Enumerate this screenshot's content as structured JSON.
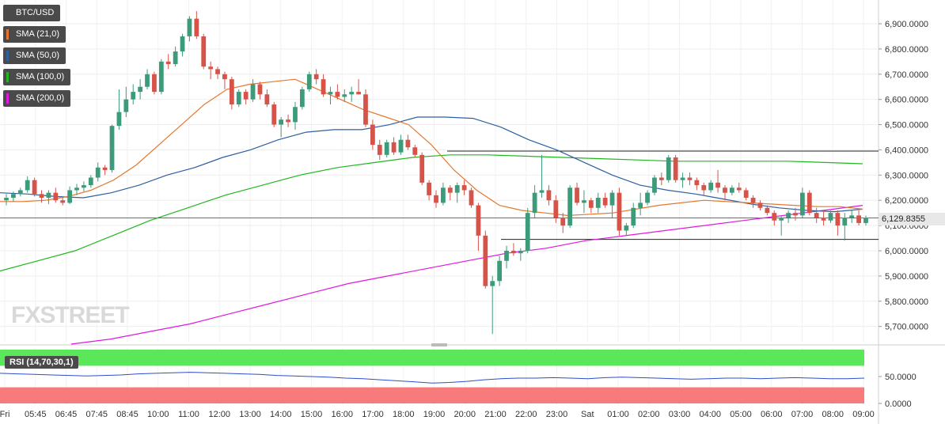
{
  "symbol": "BTC/USD",
  "legend": [
    {
      "label": "BTC/USD",
      "color": "#4a4a4a"
    },
    {
      "label": "SMA (21,0)",
      "color": "#e5772e"
    },
    {
      "label": "SMA (50,0)",
      "color": "#2d5fa3"
    },
    {
      "label": "SMA (100,0)",
      "color": "#1eb81e"
    },
    {
      "label": "SMA (200,0)",
      "color": "#e018e0"
    }
  ],
  "watermark": "FXSTREET",
  "current_price": "6,129.8355",
  "rsi_label": "RSI (14,70,30,1)",
  "rsi_axis": [
    "50.0000",
    "0.0000"
  ],
  "colors": {
    "up": "#3c9c7a",
    "down": "#d6534a",
    "sma21": "#e5772e",
    "sma50": "#2d5fa3",
    "sma100": "#1eb81e",
    "sma200": "#e018e0",
    "rsi": "#2d4fc9",
    "rsi_overbought": "#5ae85a",
    "rsi_oversold": "#f77b7b"
  },
  "chart_data": {
    "type": "candlestick",
    "ylim": [
      5650,
      6950
    ],
    "y_ticks": [
      "6,900.0000",
      "6,800.0000",
      "6,700.0000",
      "6,600.0000",
      "6,500.0000",
      "6,400.0000",
      "6,300.0000",
      "6,200.0000",
      "6,100.0000",
      "6,000.0000",
      "5,900.0000",
      "5,800.0000",
      "5,700.0000"
    ],
    "y_tick_values": [
      6900,
      6800,
      6700,
      6600,
      6500,
      6400,
      6300,
      6200,
      6100,
      6000,
      5900,
      5800,
      5700
    ],
    "x_ticks": [
      "Fri",
      "05:45",
      "06:45",
      "07:45",
      "08:45",
      "10:00",
      "11:00",
      "12:00",
      "13:00",
      "14:00",
      "15:00",
      "16:00",
      "17:00",
      "18:00",
      "19:00",
      "20:00",
      "21:00",
      "22:00",
      "23:00",
      "Sat",
      "01:00",
      "02:00",
      "03:00",
      "04:00",
      "05:00",
      "06:00",
      "07:00",
      "08:00",
      "09:00"
    ],
    "candles": [
      [
        6200,
        6225,
        6180,
        6210
      ],
      [
        6210,
        6235,
        6195,
        6225
      ],
      [
        6225,
        6250,
        6215,
        6240
      ],
      [
        6240,
        6295,
        6230,
        6280
      ],
      [
        6280,
        6290,
        6215,
        6225
      ],
      [
        6225,
        6240,
        6190,
        6210
      ],
      [
        6210,
        6240,
        6185,
        6230
      ],
      [
        6230,
        6250,
        6190,
        6200
      ],
      [
        6200,
        6215,
        6180,
        6190
      ],
      [
        6190,
        6255,
        6185,
        6240
      ],
      [
        6240,
        6265,
        6220,
        6250
      ],
      [
        6250,
        6275,
        6235,
        6260
      ],
      [
        6260,
        6300,
        6250,
        6290
      ],
      [
        6290,
        6350,
        6275,
        6330
      ],
      [
        6330,
        6340,
        6300,
        6320
      ],
      [
        6320,
        6500,
        6310,
        6495
      ],
      [
        6495,
        6640,
        6480,
        6550
      ],
      [
        6550,
        6650,
        6530,
        6600
      ],
      [
        6600,
        6660,
        6580,
        6630
      ],
      [
        6630,
        6680,
        6600,
        6650
      ],
      [
        6650,
        6720,
        6640,
        6700
      ],
      [
        6700,
        6710,
        6620,
        6630
      ],
      [
        6630,
        6760,
        6620,
        6750
      ],
      [
        6750,
        6780,
        6720,
        6740
      ],
      [
        6740,
        6810,
        6730,
        6790
      ],
      [
        6790,
        6860,
        6770,
        6850
      ],
      [
        6850,
        6930,
        6830,
        6920
      ],
      [
        6920,
        6950,
        6840,
        6850
      ],
      [
        6850,
        6860,
        6720,
        6730
      ],
      [
        6730,
        6750,
        6680,
        6720
      ],
      [
        6720,
        6730,
        6680,
        6700
      ],
      [
        6700,
        6710,
        6640,
        6680
      ],
      [
        6680,
        6690,
        6560,
        6580
      ],
      [
        6580,
        6640,
        6570,
        6630
      ],
      [
        6630,
        6640,
        6580,
        6600
      ],
      [
        6600,
        6680,
        6590,
        6660
      ],
      [
        6660,
        6670,
        6600,
        6620
      ],
      [
        6620,
        6640,
        6570,
        6580
      ],
      [
        6580,
        6590,
        6490,
        6500
      ],
      [
        6500,
        6530,
        6450,
        6520
      ],
      [
        6520,
        6540,
        6490,
        6510
      ],
      [
        6510,
        6590,
        6480,
        6570
      ],
      [
        6570,
        6650,
        6560,
        6640
      ],
      [
        6640,
        6710,
        6630,
        6700
      ],
      [
        6700,
        6720,
        6660,
        6680
      ],
      [
        6680,
        6700,
        6610,
        6620
      ],
      [
        6620,
        6650,
        6580,
        6630
      ],
      [
        6630,
        6660,
        6600,
        6610
      ],
      [
        6610,
        6640,
        6590,
        6620
      ],
      [
        6620,
        6650,
        6590,
        6630
      ],
      [
        6630,
        6680,
        6620,
        6620
      ],
      [
        6620,
        6640,
        6490,
        6500
      ],
      [
        6500,
        6520,
        6400,
        6420
      ],
      [
        6420,
        6440,
        6360,
        6380
      ],
      [
        6380,
        6440,
        6370,
        6430
      ],
      [
        6430,
        6450,
        6380,
        6390
      ],
      [
        6390,
        6460,
        6380,
        6440
      ],
      [
        6440,
        6460,
        6400,
        6410
      ],
      [
        6410,
        6420,
        6370,
        6380
      ],
      [
        6380,
        6390,
        6260,
        6270
      ],
      [
        6270,
        6280,
        6200,
        6220
      ],
      [
        6220,
        6240,
        6170,
        6190
      ],
      [
        6190,
        6270,
        6180,
        6250
      ],
      [
        6250,
        6260,
        6200,
        6230
      ],
      [
        6230,
        6270,
        6190,
        6260
      ],
      [
        6260,
        6280,
        6220,
        6240
      ],
      [
        6240,
        6250,
        6170,
        6180
      ],
      [
        6180,
        6190,
        6000,
        6060
      ],
      [
        6060,
        6080,
        5850,
        5860
      ],
      [
        5860,
        5900,
        5670,
        5880
      ],
      [
        5880,
        5980,
        5860,
        5960
      ],
      [
        5960,
        6020,
        5930,
        6000
      ],
      [
        6000,
        6030,
        5980,
        5990
      ],
      [
        5990,
        6010,
        5960,
        6000
      ],
      [
        6000,
        6170,
        5990,
        6150
      ],
      [
        6150,
        6260,
        6130,
        6230
      ],
      [
        6230,
        6380,
        6210,
        6240
      ],
      [
        6240,
        6260,
        6180,
        6200
      ],
      [
        6200,
        6220,
        6110,
        6130
      ],
      [
        6130,
        6150,
        6070,
        6100
      ],
      [
        6100,
        6260,
        6090,
        6250
      ],
      [
        6250,
        6270,
        6180,
        6190
      ],
      [
        6190,
        6240,
        6150,
        6200
      ],
      [
        6200,
        6210,
        6150,
        6170
      ],
      [
        6170,
        6230,
        6150,
        6210
      ],
      [
        6210,
        6230,
        6170,
        6180
      ],
      [
        6180,
        6240,
        6130,
        6230
      ],
      [
        6230,
        6250,
        6060,
        6080
      ],
      [
        6080,
        6110,
        6060,
        6100
      ],
      [
        6100,
        6190,
        6090,
        6170
      ],
      [
        6170,
        6230,
        6140,
        6190
      ],
      [
        6190,
        6240,
        6180,
        6230
      ],
      [
        6230,
        6300,
        6220,
        6290
      ],
      [
        6290,
        6310,
        6260,
        6280
      ],
      [
        6280,
        6380,
        6270,
        6370
      ],
      [
        6370,
        6380,
        6270,
        6280
      ],
      [
        6280,
        6310,
        6250,
        6290
      ],
      [
        6290,
        6310,
        6260,
        6280
      ],
      [
        6280,
        6290,
        6240,
        6260
      ],
      [
        6260,
        6270,
        6220,
        6240
      ],
      [
        6240,
        6280,
        6230,
        6270
      ],
      [
        6270,
        6320,
        6230,
        6250
      ],
      [
        6250,
        6260,
        6200,
        6230
      ],
      [
        6230,
        6260,
        6220,
        6250
      ],
      [
        6250,
        6270,
        6230,
        6240
      ],
      [
        6240,
        6250,
        6200,
        6210
      ],
      [
        6210,
        6220,
        6170,
        6190
      ],
      [
        6190,
        6200,
        6160,
        6170
      ],
      [
        6170,
        6180,
        6140,
        6150
      ],
      [
        6150,
        6160,
        6100,
        6120
      ],
      [
        6120,
        6140,
        6060,
        6130
      ],
      [
        6130,
        6160,
        6110,
        6150
      ],
      [
        6150,
        6170,
        6120,
        6140
      ],
      [
        6140,
        6250,
        6130,
        6230
      ],
      [
        6230,
        6240,
        6140,
        6150
      ],
      [
        6150,
        6170,
        6110,
        6130
      ],
      [
        6130,
        6160,
        6100,
        6120
      ],
      [
        6120,
        6160,
        6110,
        6150
      ],
      [
        6150,
        6160,
        6060,
        6100
      ],
      [
        6100,
        6150,
        6040,
        6130
      ],
      [
        6130,
        6160,
        6110,
        6140
      ],
      [
        6140,
        6160,
        6100,
        6110
      ],
      [
        6110,
        6140,
        6100,
        6130
      ]
    ],
    "sma21": [
      6195,
      6195,
      6200,
      6215,
      6240,
      6280,
      6340,
      6420,
      6500,
      6580,
      6640,
      6660,
      6670,
      6680,
      6640,
      6600,
      6560,
      6530,
      6500,
      6420,
      6320,
      6240,
      6180,
      6160,
      6150,
      6140,
      6145,
      6150,
      6165,
      6180,
      6190,
      6200,
      6195,
      6190,
      6185,
      6180,
      6175,
      6175,
      6165
    ],
    "sma50": [
      6230,
      6225,
      6215,
      6210,
      6230,
      6260,
      6300,
      6330,
      6370,
      6400,
      6440,
      6470,
      6480,
      6480,
      6500,
      6530,
      6530,
      6525,
      6490,
      6440,
      6400,
      6350,
      6300,
      6260,
      6240,
      6225,
      6205,
      6185,
      6170,
      6160,
      6155,
      6165
    ],
    "sma100": [
      5920,
      5960,
      6000,
      6060,
      6120,
      6170,
      6220,
      6260,
      6300,
      6330,
      6350,
      6370,
      6380,
      6380,
      6375,
      6370,
      6365,
      6360,
      6355,
      6355,
      6355,
      6355,
      6350,
      6345
    ],
    "sma200": [
      5630,
      5650,
      5680,
      5710,
      5750,
      5790,
      5830,
      5870,
      5900,
      5930,
      5960,
      5990,
      6010,
      6040,
      6060,
      6080,
      6100,
      6120,
      6140,
      6160,
      6180
    ],
    "support_line": 6045,
    "resistance_line": 6395,
    "rsi": [
      56,
      55,
      54,
      53,
      52,
      51,
      52,
      53,
      55,
      56,
      57,
      58,
      57,
      56,
      55,
      54,
      52,
      51,
      50,
      49,
      47,
      46,
      44,
      42,
      40,
      38,
      39,
      41,
      44,
      46,
      47,
      47,
      48,
      47,
      46,
      48,
      49,
      48,
      47,
      46,
      45,
      46,
      47,
      47,
      46,
      47,
      48,
      47,
      46,
      46,
      47
    ],
    "rsi_ylim": [
      0,
      100
    ]
  }
}
